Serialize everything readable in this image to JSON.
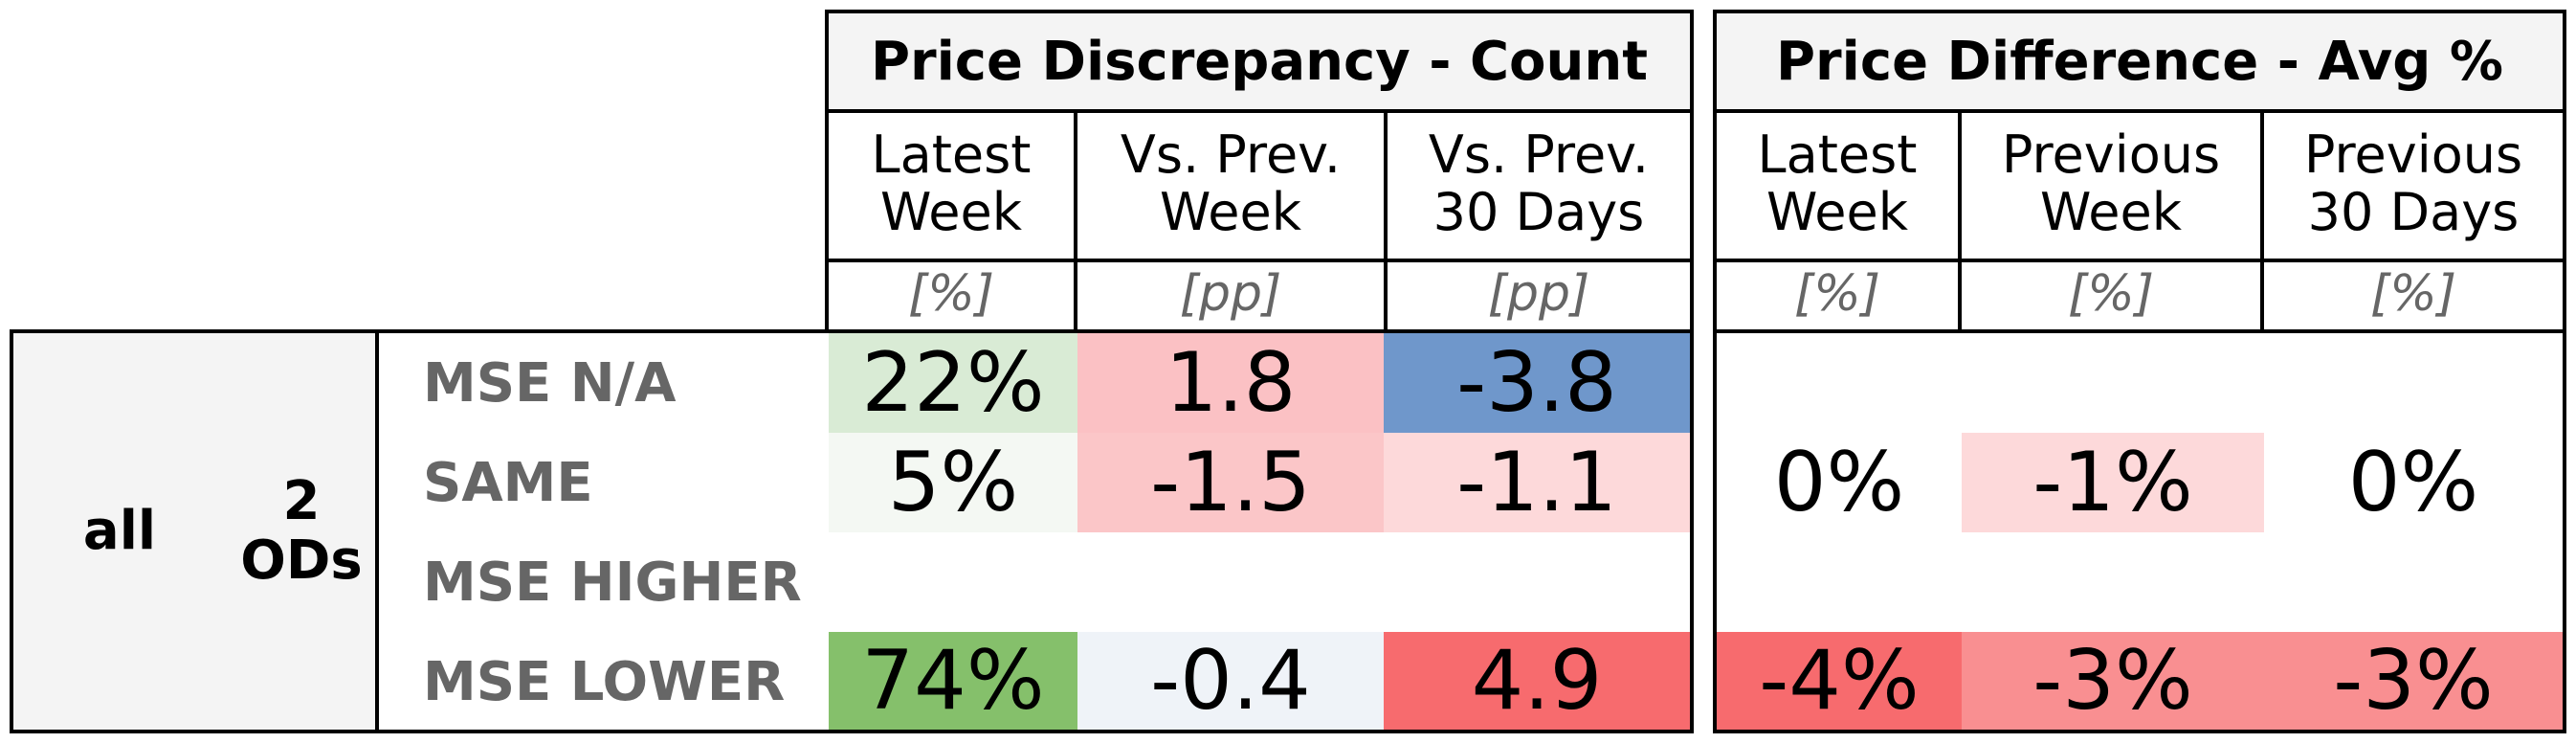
{
  "group": {
    "level1": "all",
    "level2": "2\nODs"
  },
  "rows": [
    "MSE N/A",
    "SAME",
    "MSE HIGHER",
    "MSE LOWER"
  ],
  "sections": [
    {
      "title": "Price Discrepancy - Count",
      "columns": [
        {
          "label": "Latest\nWeek",
          "unit": "[%]"
        },
        {
          "label": "Vs. Prev.\nWeek",
          "unit": "[pp]"
        },
        {
          "label": "Vs. Prev.\n30 Days",
          "unit": "[pp]"
        }
      ],
      "cells": [
        [
          {
            "v": "22%",
            "bg": "#d9ebd5"
          },
          {
            "v": "1.8",
            "bg": "#fbc1c4"
          },
          {
            "v": "-3.8",
            "bg": "#6f97cb"
          }
        ],
        [
          {
            "v": "5%",
            "bg": "#f4f8f3"
          },
          {
            "v": "-1.5",
            "bg": "#fbc6c8"
          },
          {
            "v": "-1.1",
            "bg": "#fdd9da"
          }
        ],
        [
          {
            "v": "",
            "bg": "#ffffff"
          },
          {
            "v": "",
            "bg": "#ffffff"
          },
          {
            "v": "",
            "bg": "#ffffff"
          }
        ],
        [
          {
            "v": "74%",
            "bg": "#85c06b"
          },
          {
            "v": "-0.4",
            "bg": "#eff3f8"
          },
          {
            "v": "4.9",
            "bg": "#f76b6e"
          }
        ]
      ]
    },
    {
      "title": "Price Difference - Avg %",
      "columns": [
        {
          "label": "Latest\nWeek",
          "unit": "[%]"
        },
        {
          "label": "Previous\nWeek",
          "unit": "[%]"
        },
        {
          "label": "Previous\n30 Days",
          "unit": "[%]"
        }
      ],
      "cells": [
        [
          {
            "v": "",
            "bg": "#ffffff"
          },
          {
            "v": "",
            "bg": "#ffffff"
          },
          {
            "v": "",
            "bg": "#ffffff"
          }
        ],
        [
          {
            "v": "0%",
            "bg": "#ffffff"
          },
          {
            "v": "-1%",
            "bg": "#fdd9da"
          },
          {
            "v": "0%",
            "bg": "#ffffff"
          }
        ],
        [
          {
            "v": "",
            "bg": "#ffffff"
          },
          {
            "v": "",
            "bg": "#ffffff"
          },
          {
            "v": "",
            "bg": "#ffffff"
          }
        ],
        [
          {
            "v": "-4%",
            "bg": "#f76b6e"
          },
          {
            "v": "-3%",
            "bg": "#f98f91"
          },
          {
            "v": "-3%",
            "bg": "#f98f91"
          }
        ]
      ]
    }
  ]
}
